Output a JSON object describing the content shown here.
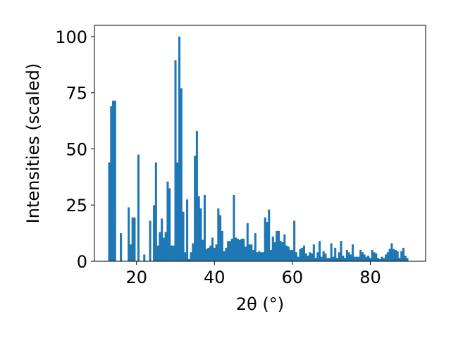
{
  "chart_data": {
    "type": "bar",
    "title": "",
    "xlabel": "2θ (°)",
    "ylabel": "Intensities (scaled)",
    "xlim": [
      9.2,
      94.2
    ],
    "ylim": [
      0,
      105
    ],
    "xticks": [
      20,
      40,
      60,
      80
    ],
    "yticks": [
      0,
      25,
      50,
      75,
      100
    ],
    "bar_width": 0.55,
    "grid": false,
    "legend": "none",
    "color": "#1f77b4",
    "x": [
      13.0,
      13.5,
      14.0,
      14.5,
      16.0,
      18.0,
      18.5,
      19.0,
      19.5,
      20.5,
      22.0,
      23.5,
      24.5,
      25.0,
      25.5,
      26.0,
      26.5,
      27.0,
      27.5,
      28.0,
      28.5,
      29.0,
      29.5,
      30.0,
      30.5,
      31.0,
      31.5,
      32.0,
      32.5,
      33.0,
      33.5,
      34.0,
      34.5,
      35.0,
      35.5,
      36.0,
      36.5,
      37.0,
      37.5,
      38.0,
      38.5,
      39.0,
      39.5,
      40.0,
      40.5,
      41.0,
      41.5,
      42.0,
      42.5,
      43.0,
      43.5,
      44.0,
      44.5,
      45.0,
      45.5,
      46.0,
      46.5,
      47.0,
      47.5,
      48.0,
      48.5,
      49.0,
      49.5,
      50.0,
      50.5,
      51.0,
      51.5,
      52.0,
      52.5,
      53.0,
      53.5,
      54.0,
      54.5,
      55.0,
      55.5,
      56.0,
      56.5,
      57.0,
      57.5,
      58.0,
      58.5,
      59.0,
      59.5,
      60.0,
      60.5,
      61.0,
      61.5,
      62.0,
      62.5,
      63.0,
      63.5,
      64.0,
      64.5,
      65.0,
      65.5,
      66.0,
      66.5,
      67.0,
      67.5,
      68.0,
      68.5,
      69.0,
      69.5,
      70.0,
      70.5,
      71.0,
      71.5,
      72.0,
      72.5,
      73.0,
      73.5,
      74.0,
      74.5,
      75.0,
      75.5,
      76.0,
      76.5,
      77.0,
      77.5,
      78.0,
      78.5,
      79.0,
      79.5,
      80.0,
      80.5,
      81.0,
      81.5,
      82.0,
      82.5,
      83.0,
      83.5,
      84.0,
      84.5,
      85.0,
      85.5,
      86.0,
      86.5,
      87.0,
      87.5,
      88.0,
      88.5,
      89.0,
      89.5
    ],
    "values": [
      44,
      69,
      71.5,
      71.5,
      12.5,
      24,
      7.5,
      19.5,
      19.5,
      47.5,
      3,
      18,
      25,
      44,
      7,
      13,
      19,
      10.5,
      13,
      35.5,
      32.5,
      7,
      7,
      89.5,
      44,
      100,
      77,
      22,
      4,
      27.5,
      1,
      4,
      8,
      47,
      58,
      29,
      23.5,
      9.5,
      29.5,
      5.5,
      6,
      7,
      10.5,
      6,
      7.5,
      23.5,
      20.5,
      13.5,
      4.5,
      6,
      9,
      9,
      10,
      29.5,
      10.5,
      10,
      9.5,
      10,
      10,
      6.5,
      17,
      7.5,
      7.5,
      5,
      12.5,
      4,
      4.5,
      4,
      4,
      19.5,
      17.5,
      23,
      5,
      11,
      8.5,
      13.5,
      13.5,
      9,
      8.5,
      12,
      7,
      6.5,
      5,
      5,
      18,
      4,
      2,
      5.5,
      6,
      7,
      3.5,
      2.5,
      4,
      3.5,
      7.5,
      1.5,
      4,
      9,
      2,
      4.5,
      3.5,
      1.5,
      1.5,
      8,
      2,
      6,
      1.5,
      4,
      9,
      2.5,
      1.5,
      5,
      4,
      3,
      7.5,
      2,
      2,
      2,
      5,
      4,
      3,
      2,
      2.5,
      1.5,
      5,
      4,
      3.5,
      1.5,
      1,
      2,
      1.5,
      3,
      4,
      5.5,
      8,
      5.5,
      5,
      4.5,
      1.5,
      4.5,
      6,
      2.5,
      1.5
    ]
  }
}
